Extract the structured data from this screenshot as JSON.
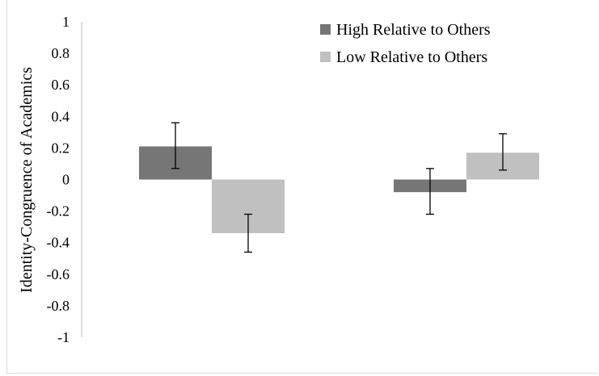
{
  "chart_data": {
    "type": "bar",
    "title": "",
    "xlabel": "",
    "ylabel": "Identity-Congruence of Academics",
    "ylim": [
      -1,
      1
    ],
    "yticks": [
      "1",
      "0.8",
      "0.6",
      "0.4",
      "0.2",
      "0",
      "-0.2",
      "-0.4",
      "-0.6",
      "-0.8",
      "-1"
    ],
    "categories": [
      "",
      ""
    ],
    "series": [
      {
        "name": "High Relative to Others",
        "color": "#767676",
        "values": [
          0.21,
          -0.08
        ],
        "err_low": [
          0.07,
          -0.22
        ],
        "err_high": [
          0.36,
          0.07
        ]
      },
      {
        "name": "Low Relative to Others",
        "color": "#c0c0c0",
        "values": [
          -0.34,
          0.17
        ],
        "err_low": [
          -0.46,
          0.06
        ],
        "err_high": [
          -0.22,
          0.29
        ]
      }
    ],
    "grid": false,
    "legend": "top-right"
  }
}
